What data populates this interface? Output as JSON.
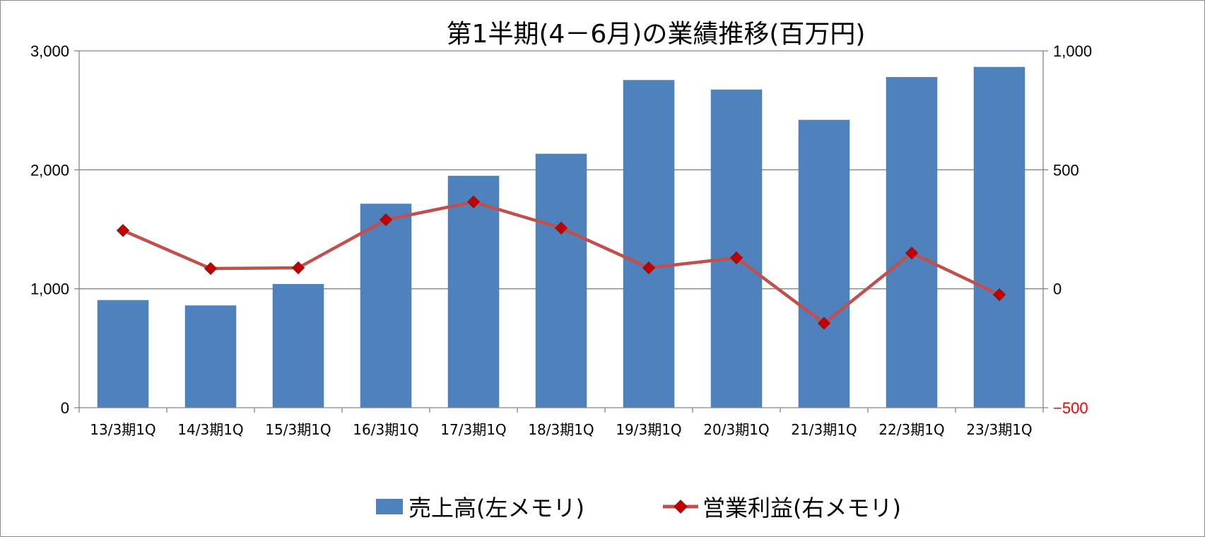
{
  "chart_data": {
    "type": "bar+line",
    "title": "第1半期(4－6月)の業績推移(百万円)",
    "categories": [
      "13/3期1Q",
      "14/3期1Q",
      "15/3期1Q",
      "16/3期1Q",
      "17/3期1Q",
      "18/3期1Q",
      "19/3期1Q",
      "20/3期1Q",
      "21/3期1Q",
      "22/3期1Q",
      "23/3期1Q"
    ],
    "series": [
      {
        "name": "売上高(左メモリ)",
        "type": "bar",
        "axis": "left",
        "color": "#4f81bd",
        "values": [
          905,
          860,
          1040,
          1715,
          1950,
          2135,
          2755,
          2675,
          2420,
          2780,
          2865
        ]
      },
      {
        "name": "営業利益(右メモリ)",
        "type": "line",
        "axis": "right",
        "color": "#c0504d",
        "marker_color": "#c00000",
        "values": [
          245,
          85,
          88,
          290,
          365,
          255,
          88,
          130,
          -145,
          150,
          -25
        ]
      }
    ],
    "left_axis": {
      "min": 0,
      "max": 3000,
      "ticks": [
        "0",
        "1,000",
        "2,000",
        "3,000"
      ]
    },
    "right_axis": {
      "min": -500,
      "max": 1000,
      "ticks": [
        "−500",
        "0",
        "500",
        "1,000"
      ],
      "negative_tick_color": "#ff0000"
    },
    "grid": true,
    "legend_position": "bottom"
  }
}
